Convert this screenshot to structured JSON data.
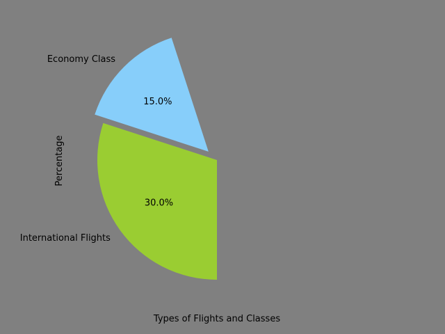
{
  "chart_data": {
    "type": "pie",
    "xlabel": "Types of Flights and Classes",
    "ylabel": "Percentage",
    "slices": [
      {
        "label": "Economy Class",
        "value": 15.0,
        "display": "15.0%",
        "color": "#87CEFA",
        "exploded": true
      },
      {
        "label": "International Flights",
        "value": 30.0,
        "display": "30.0%",
        "color": "#9ACD32",
        "exploded": false
      }
    ]
  }
}
